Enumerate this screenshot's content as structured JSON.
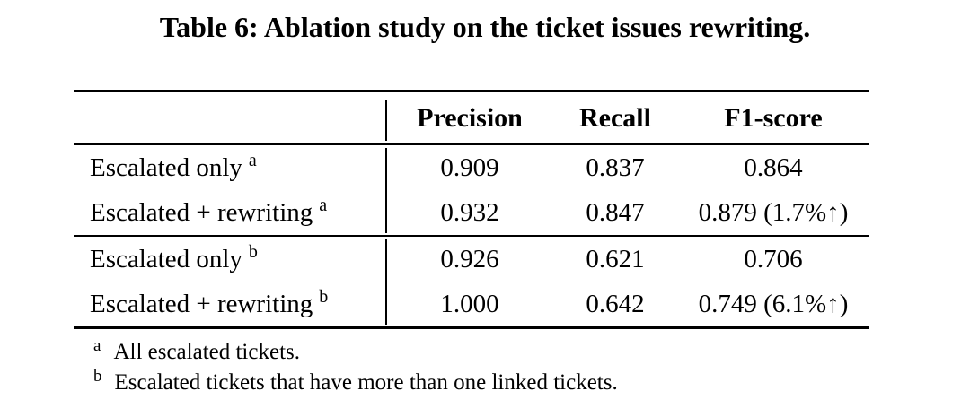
{
  "page": {
    "title": "Table 6: Ablation study on the ticket issues rewriting."
  },
  "table": {
    "header": {
      "precision": "Precision",
      "recall": "Recall",
      "f1": "F1-score"
    },
    "sections": [
      {
        "rows": [
          {
            "label": "Escalated only",
            "marker": "a",
            "precision": "0.909",
            "recall": "0.837",
            "f1": "0.864"
          },
          {
            "label": "Escalated + rewriting",
            "marker": "a",
            "precision": "0.932",
            "recall": "0.847",
            "f1": "0.879 (1.7%↑)"
          }
        ]
      },
      {
        "rows": [
          {
            "label": "Escalated only",
            "marker": "b",
            "precision": "0.926",
            "recall": "0.621",
            "f1": "0.706"
          },
          {
            "label": "Escalated + rewriting",
            "marker": "b",
            "precision": "1.000",
            "recall": "0.642",
            "f1": "0.749 (6.1%↑)"
          }
        ]
      }
    ],
    "footnotes": [
      {
        "marker": "a",
        "text": "All escalated tickets."
      },
      {
        "marker": "b",
        "text": "Escalated tickets that have more than one linked tickets."
      }
    ]
  },
  "colors": {
    "text": "#000000",
    "background": "#ffffff",
    "rule": "#000000"
  }
}
